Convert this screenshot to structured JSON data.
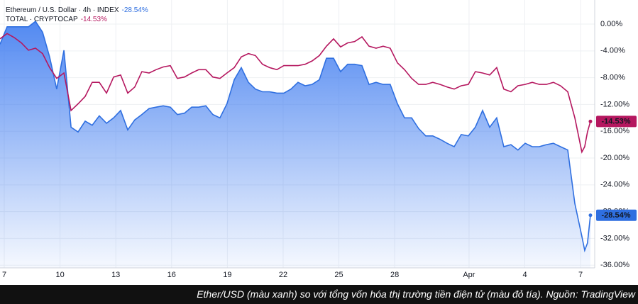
{
  "chart_data": {
    "type": "line",
    "caption": "Ether/USD (màu xanh) so với tổng vốn hóa thị trường tiền điện tử (màu đỏ tía). Nguồn: TradingView",
    "x": [
      -0.23,
      0.15,
      0.53,
      0.92,
      1.3,
      1.68,
      2.06,
      2.44,
      2.82,
      3.21,
      3.59,
      3.97,
      4.35,
      4.73,
      5.11,
      5.5,
      5.88,
      6.26,
      6.64,
      7.02,
      7.4,
      7.79,
      8.17,
      8.55,
      8.93,
      9.31,
      9.69,
      10.08,
      10.46,
      10.84,
      11.22,
      11.6,
      11.98,
      12.37,
      12.75,
      13.13,
      13.51,
      13.89,
      14.27,
      14.66,
      15.04,
      15.42,
      15.8,
      16.18,
      16.56,
      16.95,
      17.33,
      17.71,
      18.09,
      18.47,
      18.85,
      19.24,
      19.62,
      20.0,
      20.38,
      20.76,
      21.15,
      21.53,
      21.91,
      22.29,
      22.67,
      23.05,
      23.44,
      23.82,
      24.2,
      24.58,
      24.96,
      25.34,
      25.73,
      26.11,
      26.49,
      26.87,
      27.25,
      27.63,
      28.02,
      28.4,
      28.78,
      29.16,
      29.54,
      29.92,
      30.31,
      30.69,
      31.07,
      31.22,
      31.37,
      31.53
    ],
    "series": [
      {
        "name": "Ethereum / U.S. Dollar · 4h · INDEX",
        "color": "#2f6fe0",
        "last_label": "-28.54%",
        "values": [
          -3.0,
          -0.4,
          -0.4,
          -0.4,
          -0.4,
          0.4,
          -1.2,
          -4.9,
          -9.7,
          -3.9,
          -15.4,
          -16.1,
          -14.5,
          -15.1,
          -13.7,
          -14.8,
          -14.0,
          -12.9,
          -15.8,
          -14.3,
          -13.5,
          -12.6,
          -12.4,
          -12.2,
          -12.4,
          -13.5,
          -13.3,
          -12.4,
          -12.4,
          -12.2,
          -13.5,
          -14.0,
          -11.9,
          -8.3,
          -6.5,
          -8.7,
          -9.7,
          -10.1,
          -10.1,
          -10.3,
          -10.3,
          -9.7,
          -8.7,
          -9.2,
          -9.0,
          -8.3,
          -5.1,
          -5.1,
          -7.1,
          -6.0,
          -6.0,
          -6.2,
          -9.0,
          -8.7,
          -9.0,
          -9.0,
          -11.9,
          -14.0,
          -14.0,
          -15.6,
          -16.7,
          -16.7,
          -17.2,
          -17.8,
          -18.3,
          -16.5,
          -16.7,
          -15.4,
          -12.9,
          -15.4,
          -14.0,
          -18.3,
          -18.0,
          -18.8,
          -17.8,
          -18.3,
          -18.3,
          -18.0,
          -17.8,
          -18.3,
          -18.8,
          -26.8,
          -31.7,
          -33.8,
          -32.7,
          -28.54
        ]
      },
      {
        "name": "TOTAL · CRYPTOCAP",
        "color": "#b5175f",
        "last_label": "-14.53%",
        "values": [
          -2.2,
          -1.4,
          -2.0,
          -2.8,
          -3.9,
          -3.6,
          -4.4,
          -6.5,
          -8.1,
          -7.3,
          -12.9,
          -11.9,
          -10.8,
          -8.7,
          -8.7,
          -10.3,
          -7.9,
          -7.6,
          -10.3,
          -9.4,
          -7.1,
          -7.3,
          -6.8,
          -6.4,
          -6.2,
          -8.1,
          -7.9,
          -7.3,
          -6.8,
          -6.8,
          -7.9,
          -8.1,
          -7.3,
          -6.5,
          -4.9,
          -4.4,
          -4.7,
          -6.0,
          -6.5,
          -6.8,
          -6.2,
          -6.2,
          -6.2,
          -6.0,
          -5.5,
          -4.7,
          -3.3,
          -2.2,
          -3.4,
          -2.8,
          -2.6,
          -1.9,
          -3.3,
          -3.6,
          -3.3,
          -3.6,
          -5.8,
          -6.8,
          -8.1,
          -9.0,
          -9.0,
          -8.7,
          -9.0,
          -9.4,
          -9.7,
          -9.2,
          -9.0,
          -7.1,
          -7.3,
          -7.6,
          -6.5,
          -9.7,
          -10.1,
          -9.2,
          -9.0,
          -8.7,
          -9.0,
          -9.0,
          -8.7,
          -9.2,
          -10.1,
          -14.0,
          -19.1,
          -18.3,
          -16.1,
          -14.53
        ]
      }
    ],
    "xlim": [
      -0.23,
      31.76
    ],
    "xticks": [
      {
        "value": 0,
        "label": "7"
      },
      {
        "value": 3,
        "label": "10"
      },
      {
        "value": 6,
        "label": "13"
      },
      {
        "value": 9,
        "label": "16"
      },
      {
        "value": 12,
        "label": "19"
      },
      {
        "value": 15,
        "label": "22"
      },
      {
        "value": 18,
        "label": "25"
      },
      {
        "value": 21,
        "label": "28"
      },
      {
        "value": 25,
        "label": "Apr"
      },
      {
        "value": 28,
        "label": "4"
      },
      {
        "value": 31,
        "label": "7"
      }
    ],
    "ylim": [
      -36.4,
      3.6
    ],
    "yticks": [
      {
        "value": 0,
        "label": "0.00%"
      },
      {
        "value": -4,
        "label": "-4.00%"
      },
      {
        "value": -8,
        "label": "-8.00%"
      },
      {
        "value": -12,
        "label": "-12.00%"
      },
      {
        "value": -16,
        "label": "-16.00%"
      },
      {
        "value": -20,
        "label": "-20.00%"
      },
      {
        "value": -24,
        "label": "-24.00%"
      },
      {
        "value": -28,
        "label": "-28.00%"
      },
      {
        "value": -32,
        "label": "-32.00%"
      },
      {
        "value": -36,
        "label": "-36.00%"
      }
    ],
    "grid": true,
    "area": true
  }
}
